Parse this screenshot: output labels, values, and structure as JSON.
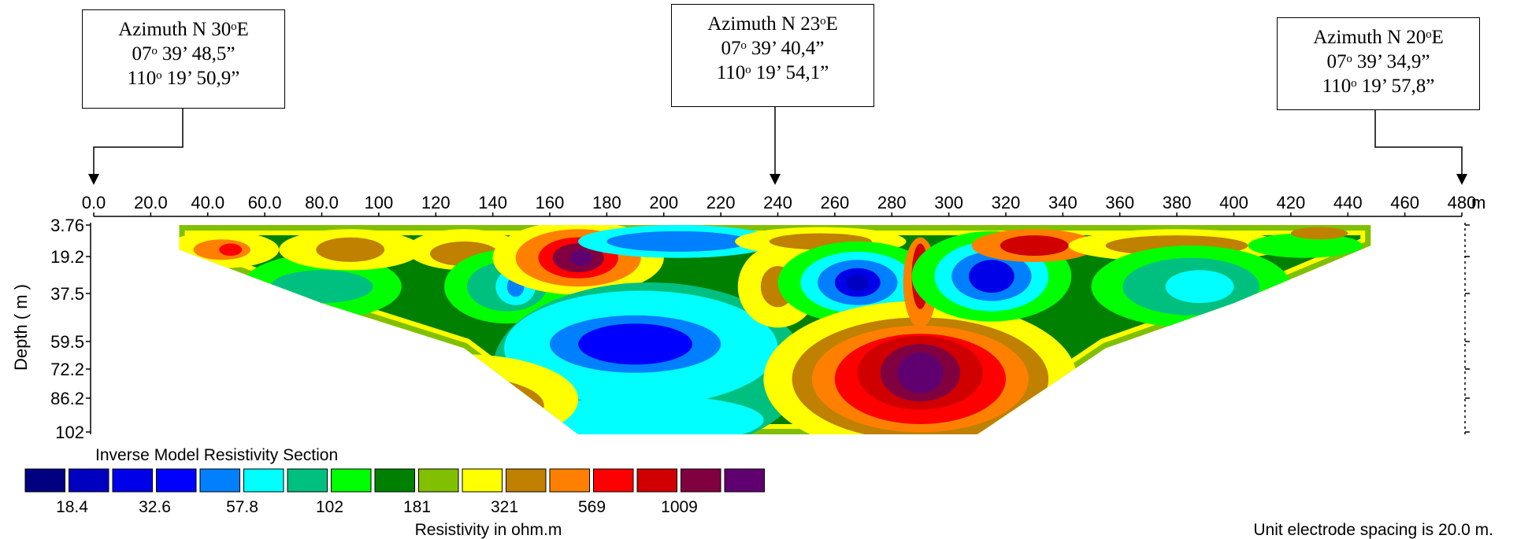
{
  "callouts": [
    {
      "line1": "Azimuth N 30ᵒE",
      "line2": "07ᵒ 39’ 48,5”",
      "line3": "110ᵒ 19’ 50,9”",
      "target_x": 0
    },
    {
      "line1": "Azimuth N 23ᵒE",
      "line2": "07ᵒ 39’ 40,4”",
      "line3": "110ᵒ 19’ 54,1”",
      "target_x": 236
    },
    {
      "line1": "Azimuth N 20ᵒE",
      "line2": "07ᵒ 39’ 34,9”",
      "line3": "110ᵒ 19’ 57,8”",
      "target_x": 480
    }
  ],
  "chart_data": {
    "type": "heatmap",
    "title": "Inverse Model Resistivity Section",
    "x_axis": {
      "unit": "m",
      "range": [
        0,
        480
      ],
      "ticks": [
        "0.0",
        "20.0",
        "40.0",
        "60.0",
        "80.0",
        "100",
        "120",
        "140",
        "160",
        "180",
        "200",
        "220",
        "240",
        "260",
        "280",
        "300",
        "320",
        "340",
        "360",
        "380",
        "400",
        "420",
        "440",
        "460",
        "480"
      ]
    },
    "y_axis": {
      "label": "Depth ( m )",
      "ticks": [
        "3.76",
        "19.2",
        "37.5",
        "59.5",
        "72.2",
        "86.2",
        "102"
      ],
      "range": [
        0,
        102
      ]
    },
    "section_top_x": [
      30,
      448
    ],
    "section_bottom_x": [
      170,
      310
    ],
    "color_scale": {
      "colors": [
        "#000080",
        "#0000c0",
        "#0000e8",
        "#0000ff",
        "#0080ff",
        "#00ffff",
        "#00c080",
        "#00ff00",
        "#008000",
        "#80c000",
        "#ffff00",
        "#c08000",
        "#ff8000",
        "#ff0000",
        "#d00000",
        "#800040",
        "#600070"
      ],
      "labels": [
        "18.4",
        "32.6",
        "57.8",
        "102",
        "181",
        "321",
        "569",
        "1009"
      ],
      "label_slots": [
        0,
        2,
        4,
        6,
        8,
        10,
        12,
        14
      ],
      "unit_label": "Resistivity in ohm.m"
    },
    "blobs": [
      {
        "x": 45,
        "y": 12,
        "rx": 20,
        "ry": 9,
        "level": 10
      },
      {
        "x": 45,
        "y": 12,
        "rx": 10,
        "ry": 5,
        "level": 12
      },
      {
        "x": 48,
        "y": 12,
        "rx": 4,
        "ry": 3,
        "level": 13
      },
      {
        "x": 80,
        "y": 30,
        "rx": 28,
        "ry": 16,
        "level": 7
      },
      {
        "x": 80,
        "y": 30,
        "rx": 18,
        "ry": 8,
        "level": 6
      },
      {
        "x": 90,
        "y": 12,
        "rx": 25,
        "ry": 10,
        "level": 10
      },
      {
        "x": 90,
        "y": 12,
        "rx": 12,
        "ry": 6,
        "level": 11
      },
      {
        "x": 130,
        "y": 12,
        "rx": 20,
        "ry": 10,
        "level": 10
      },
      {
        "x": 130,
        "y": 14,
        "rx": 12,
        "ry": 6,
        "level": 11
      },
      {
        "x": 145,
        "y": 30,
        "rx": 22,
        "ry": 18,
        "level": 7
      },
      {
        "x": 145,
        "y": 30,
        "rx": 14,
        "ry": 12,
        "level": 6
      },
      {
        "x": 148,
        "y": 30,
        "rx": 7,
        "ry": 9,
        "level": 5
      },
      {
        "x": 148,
        "y": 30,
        "rx": 3,
        "ry": 5,
        "level": 4
      },
      {
        "x": 170,
        "y": 16,
        "rx": 30,
        "ry": 18,
        "level": 10
      },
      {
        "x": 170,
        "y": 16,
        "rx": 22,
        "ry": 14,
        "level": 12
      },
      {
        "x": 170,
        "y": 16,
        "rx": 14,
        "ry": 10,
        "level": 13
      },
      {
        "x": 170,
        "y": 16,
        "rx": 9,
        "ry": 7,
        "level": 15
      },
      {
        "x": 171,
        "y": 16,
        "rx": 4,
        "ry": 4,
        "level": 16
      },
      {
        "x": 205,
        "y": 8,
        "rx": 35,
        "ry": 8,
        "level": 5
      },
      {
        "x": 205,
        "y": 8,
        "rx": 25,
        "ry": 5,
        "level": 4
      },
      {
        "x": 195,
        "y": 70,
        "rx": 55,
        "ry": 42,
        "level": 6
      },
      {
        "x": 192,
        "y": 60,
        "rx": 48,
        "ry": 28,
        "level": 5
      },
      {
        "x": 190,
        "y": 58,
        "rx": 30,
        "ry": 14,
        "level": 4
      },
      {
        "x": 190,
        "y": 58,
        "rx": 20,
        "ry": 10,
        "level": 3
      },
      {
        "x": 195,
        "y": 95,
        "rx": 40,
        "ry": 12,
        "level": 5
      },
      {
        "x": 130,
        "y": 85,
        "rx": 40,
        "ry": 22,
        "level": 10
      },
      {
        "x": 130,
        "y": 88,
        "rx": 28,
        "ry": 14,
        "level": 11
      },
      {
        "x": 125,
        "y": 92,
        "rx": 18,
        "ry": 9,
        "level": 12
      },
      {
        "x": 240,
        "y": 30,
        "rx": 14,
        "ry": 20,
        "level": 10
      },
      {
        "x": 240,
        "y": 30,
        "rx": 6,
        "ry": 10,
        "level": 11
      },
      {
        "x": 255,
        "y": 8,
        "rx": 30,
        "ry": 7,
        "level": 10
      },
      {
        "x": 255,
        "y": 8,
        "rx": 18,
        "ry": 4,
        "level": 11
      },
      {
        "x": 268,
        "y": 28,
        "rx": 28,
        "ry": 20,
        "level": 7
      },
      {
        "x": 268,
        "y": 28,
        "rx": 20,
        "ry": 15,
        "level": 5
      },
      {
        "x": 268,
        "y": 28,
        "rx": 14,
        "ry": 11,
        "level": 4
      },
      {
        "x": 268,
        "y": 28,
        "rx": 8,
        "ry": 7,
        "level": 2
      },
      {
        "x": 268,
        "y": 28,
        "rx": 4,
        "ry": 4,
        "level": 1
      },
      {
        "x": 290,
        "y": 75,
        "rx": 55,
        "ry": 38,
        "level": 10
      },
      {
        "x": 290,
        "y": 75,
        "rx": 45,
        "ry": 30,
        "level": 11
      },
      {
        "x": 290,
        "y": 75,
        "rx": 38,
        "ry": 26,
        "level": 12
      },
      {
        "x": 290,
        "y": 75,
        "rx": 30,
        "ry": 22,
        "level": 13
      },
      {
        "x": 290,
        "y": 72,
        "rx": 22,
        "ry": 18,
        "level": 14
      },
      {
        "x": 290,
        "y": 72,
        "rx": 14,
        "ry": 14,
        "level": 15
      },
      {
        "x": 290,
        "y": 72,
        "rx": 8,
        "ry": 10,
        "level": 16
      },
      {
        "x": 290,
        "y": 28,
        "rx": 6,
        "ry": 22,
        "level": 12
      },
      {
        "x": 290,
        "y": 25,
        "rx": 3,
        "ry": 16,
        "level": 14
      },
      {
        "x": 315,
        "y": 25,
        "rx": 28,
        "ry": 22,
        "level": 7
      },
      {
        "x": 315,
        "y": 25,
        "rx": 20,
        "ry": 17,
        "level": 5
      },
      {
        "x": 315,
        "y": 25,
        "rx": 14,
        "ry": 12,
        "level": 4
      },
      {
        "x": 315,
        "y": 25,
        "rx": 8,
        "ry": 8,
        "level": 2
      },
      {
        "x": 330,
        "y": 10,
        "rx": 22,
        "ry": 8,
        "level": 12
      },
      {
        "x": 330,
        "y": 10,
        "rx": 12,
        "ry": 5,
        "level": 14
      },
      {
        "x": 380,
        "y": 10,
        "rx": 38,
        "ry": 8,
        "level": 10
      },
      {
        "x": 380,
        "y": 10,
        "rx": 25,
        "ry": 5,
        "level": 11
      },
      {
        "x": 385,
        "y": 30,
        "rx": 35,
        "ry": 20,
        "level": 7
      },
      {
        "x": 385,
        "y": 30,
        "rx": 24,
        "ry": 14,
        "level": 6
      },
      {
        "x": 388,
        "y": 30,
        "rx": 12,
        "ry": 8,
        "level": 5
      },
      {
        "x": 425,
        "y": 10,
        "rx": 20,
        "ry": 6,
        "level": 7
      },
      {
        "x": 430,
        "y": 4,
        "rx": 10,
        "ry": 3,
        "level": 11
      }
    ],
    "base_level": 8,
    "edge_level": 9,
    "edge_level_outer": 10
  },
  "footer": {
    "electrode_spacing": "Unit electrode spacing is 20.0 m."
  }
}
